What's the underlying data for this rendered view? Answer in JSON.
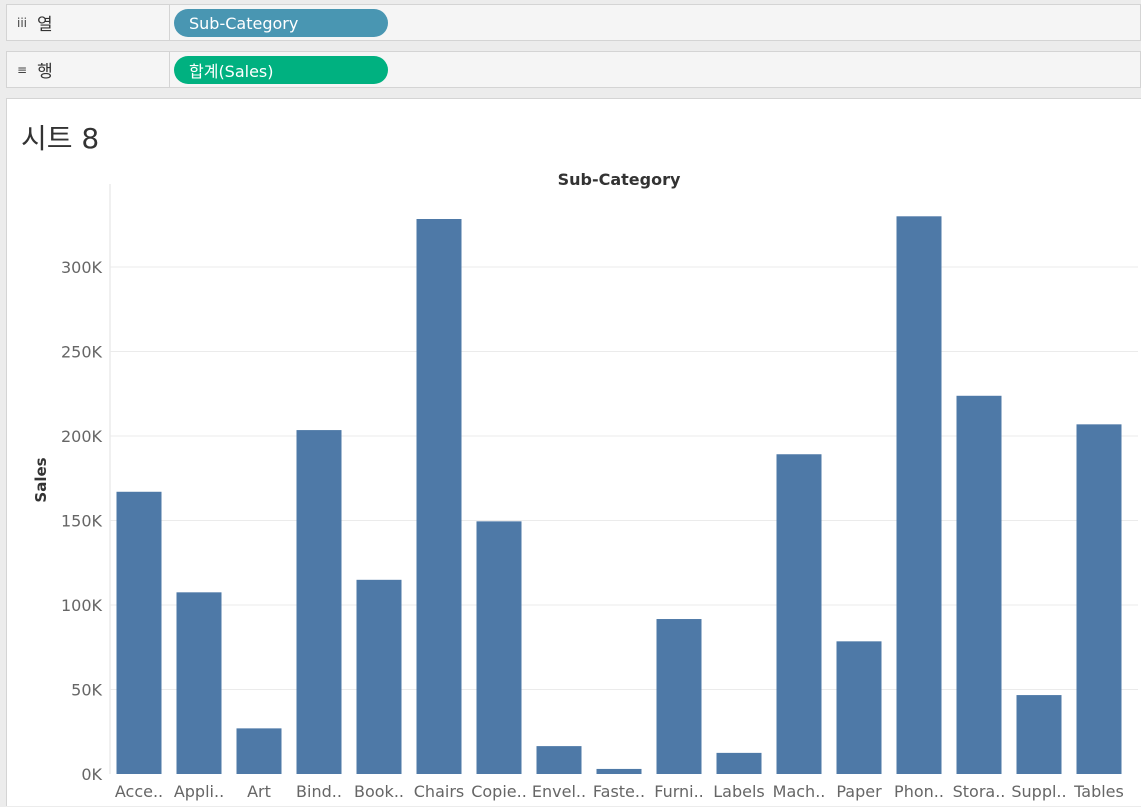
{
  "shelves": {
    "columns": {
      "icon": "iii",
      "label": "열",
      "pill": "Sub-Category"
    },
    "rows": {
      "icon": "≡",
      "label": "행",
      "pill": "합계(Sales)"
    }
  },
  "sheet": {
    "title": "시트 8"
  },
  "colors": {
    "bar": "#4e79a7",
    "gridline": "#ebebeb",
    "axis_text": "#666666"
  },
  "chart_data": {
    "type": "bar",
    "title": "Sub-Category",
    "xlabel": "",
    "ylabel": "Sales",
    "ylim": [
      0,
      350000
    ],
    "yticks": [
      0,
      50000,
      100000,
      150000,
      200000,
      250000,
      300000
    ],
    "ytick_labels": [
      "0K",
      "50K",
      "100K",
      "150K",
      "200K",
      "250K",
      "300K"
    ],
    "grid": true,
    "categories": [
      "Acce..",
      "Appli..",
      "Art",
      "Bind..",
      "Book..",
      "Chairs",
      "Copie..",
      "Envel..",
      "Faste..",
      "Furni..",
      "Labels",
      "Mach..",
      "Paper",
      "Phon..",
      "Stora..",
      "Suppl..",
      "Tables"
    ],
    "values": [
      167000,
      107500,
      27000,
      203500,
      114900,
      328400,
      149500,
      16500,
      3000,
      91700,
      12500,
      189200,
      78500,
      330000,
      223800,
      46700,
      206900
    ]
  }
}
